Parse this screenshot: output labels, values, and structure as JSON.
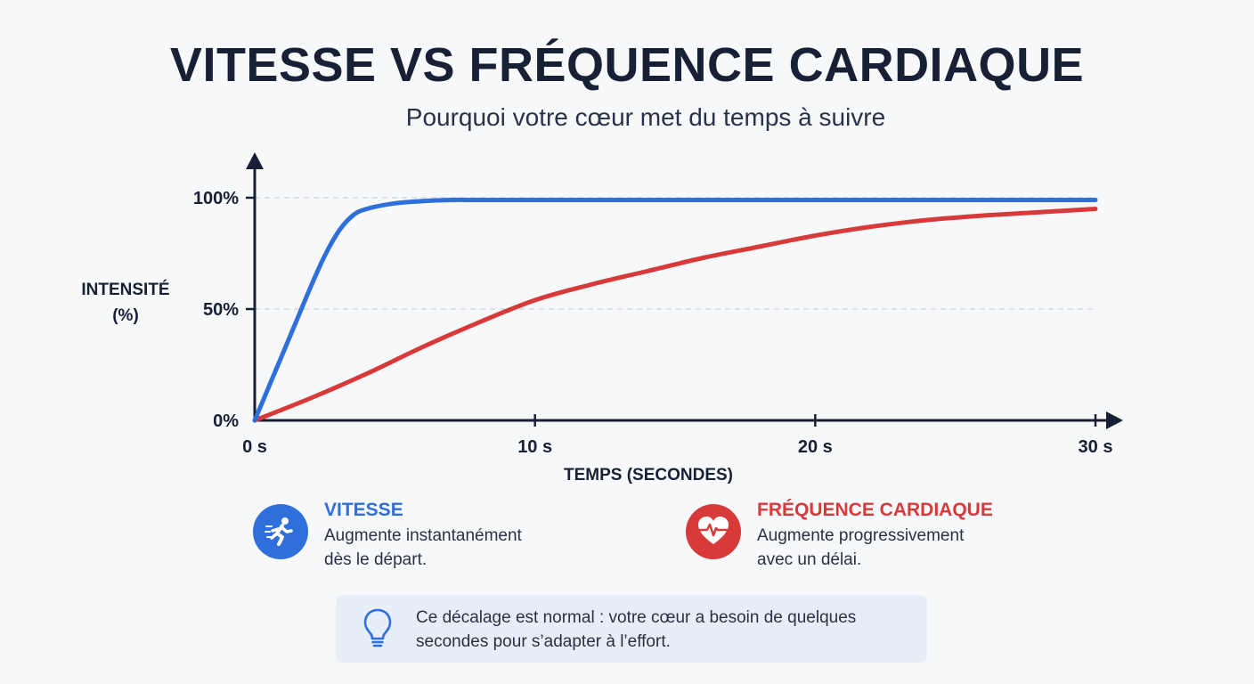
{
  "title": "VITESSE VS FRÉQUENCE CARDIAQUE",
  "subtitle": "Pourquoi votre cœur met du temps à suivre",
  "chart_data": {
    "type": "line",
    "xlabel": "TEMPS (SECONDES)",
    "ylabel_lines": [
      "INTENSITÉ",
      "(%)"
    ],
    "xlim": [
      0,
      30
    ],
    "ylim": [
      0,
      100
    ],
    "x_ticks": [
      0,
      10,
      20,
      30
    ],
    "x_tick_labels": [
      "0 s",
      "10 s",
      "20 s",
      "30 s"
    ],
    "y_ticks": [
      0,
      50,
      100
    ],
    "y_tick_labels": [
      "0%",
      "50%",
      "100%"
    ],
    "gridlines": [
      50,
      100
    ],
    "series": [
      {
        "name": "VITESSE",
        "color": "#2f6fdc",
        "x": [
          0,
          0.5,
          1,
          1.5,
          2,
          2.5,
          3,
          3.5,
          4,
          5,
          6,
          7,
          8,
          10,
          15,
          20,
          25,
          30
        ],
        "y": [
          0,
          15,
          30,
          45,
          60,
          74,
          85,
          92,
          95,
          97.5,
          98.5,
          99,
          99,
          99,
          99,
          99,
          99,
          99
        ]
      },
      {
        "name": "FRÉQUENCE CARDIAQUE",
        "color": "#d83a3a",
        "x": [
          0,
          2,
          4,
          6,
          8,
          10,
          12,
          14,
          16,
          18,
          20,
          22,
          24,
          26,
          28,
          30
        ],
        "y": [
          0,
          10,
          21,
          33,
          44,
          54,
          61,
          67,
          73,
          78,
          83,
          87,
          90,
          92,
          93.5,
          95
        ]
      }
    ]
  },
  "legend": {
    "speed": {
      "title": "VITESSE",
      "desc_lines": [
        "Augmente instantanément",
        "dès le départ."
      ],
      "icon": "running-person-icon",
      "color": "#2f6fdc"
    },
    "heart": {
      "title": "FRÉQUENCE CARDIAQUE",
      "desc_lines": [
        "Augmente progressivement",
        "avec un délai."
      ],
      "icon": "heart-pulse-icon",
      "color": "#d83a3a"
    }
  },
  "note": {
    "icon": "lightbulb-icon",
    "lines": [
      "Ce décalage est normal : votre cœur a besoin de quelques",
      "secondes pour s’adapter à l’effort."
    ]
  }
}
